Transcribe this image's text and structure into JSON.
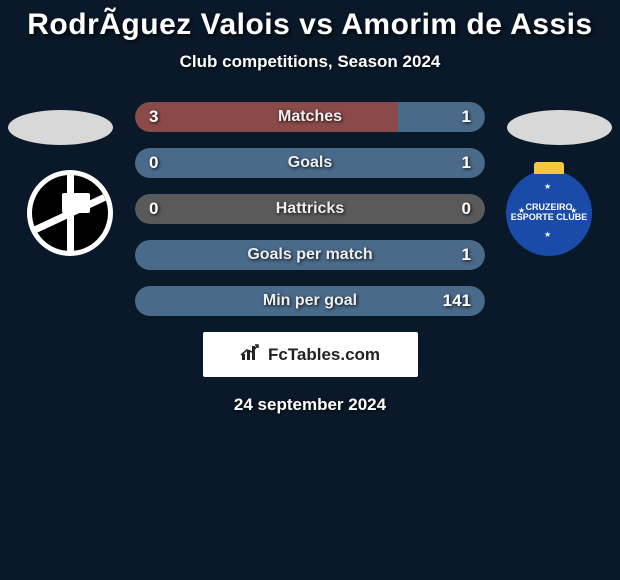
{
  "title": "RodrÃ­guez Valois vs Amorim de Assis",
  "subtitle": "Club competitions, Season 2024",
  "date": "24 september 2024",
  "brand": "FcTables.com",
  "colors": {
    "background": "#0a1929",
    "left_bar": "#8a4a4a",
    "right_bar": "#4a6a8a",
    "neutral_bar": "#5a5a5a",
    "photo_placeholder": "#d8d8d8",
    "logo_right_bg": "#1a4ba8",
    "logo_right_crown": "#f5c842"
  },
  "player_left": {
    "club_name": "Vasco da Gama"
  },
  "player_right": {
    "club_name": "Cruzeiro",
    "club_text": "CRUZEIRO ESPORTE CLUBE"
  },
  "stats": [
    {
      "label": "Matches",
      "left_val": "3",
      "right_val": "1",
      "left_pct": 75,
      "right_pct": 25,
      "left_color": "#8a4a4a",
      "right_color": "#4a6a8a"
    },
    {
      "label": "Goals",
      "left_val": "0",
      "right_val": "1",
      "left_pct": 0,
      "right_pct": 100,
      "left_color": "#8a4a4a",
      "right_color": "#4a6a8a"
    },
    {
      "label": "Hattricks",
      "left_val": "0",
      "right_val": "0",
      "left_pct": 50,
      "right_pct": 50,
      "left_color": "#5a5a5a",
      "right_color": "#5a5a5a"
    },
    {
      "label": "Goals per match",
      "left_val": "",
      "right_val": "1",
      "left_pct": 0,
      "right_pct": 100,
      "left_color": "#8a4a4a",
      "right_color": "#4a6a8a"
    },
    {
      "label": "Min per goal",
      "left_val": "",
      "right_val": "141",
      "left_pct": 0,
      "right_pct": 100,
      "left_color": "#8a4a4a",
      "right_color": "#4a6a8a"
    }
  ]
}
